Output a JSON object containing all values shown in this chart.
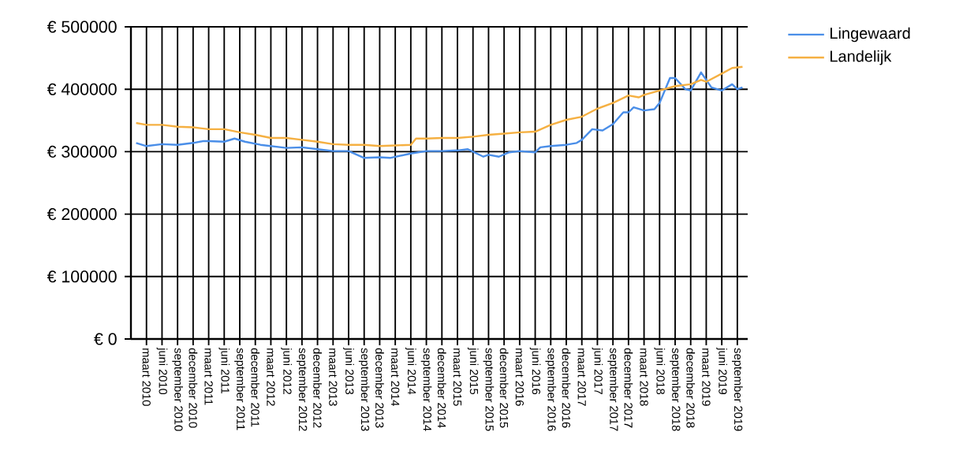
{
  "chart_data": {
    "type": "line",
    "grid": true,
    "legend": "top right",
    "marker": "none",
    "line_style": "solid",
    "xlim": [
      "2009-12",
      "2019-11"
    ],
    "xticks": [
      {
        "value": "2010-03",
        "label": "maart 2010"
      },
      {
        "value": "2010-06",
        "label": "juni 2010"
      },
      {
        "value": "2010-09",
        "label": "september 2010"
      },
      {
        "value": "2010-12",
        "label": "december 2010"
      },
      {
        "value": "2011-03",
        "label": "maart 2011"
      },
      {
        "value": "2011-06",
        "label": "juni 2011"
      },
      {
        "value": "2011-09",
        "label": "september 2011"
      },
      {
        "value": "2011-12",
        "label": "december 2011"
      },
      {
        "value": "2012-03",
        "label": "maart 2012"
      },
      {
        "value": "2012-06",
        "label": "juni 2012"
      },
      {
        "value": "2012-09",
        "label": "september 2012"
      },
      {
        "value": "2012-12",
        "label": "december 2012"
      },
      {
        "value": "2013-03",
        "label": "maart 2013"
      },
      {
        "value": "2013-06",
        "label": "juni 2013"
      },
      {
        "value": "2013-09",
        "label": "september 2013"
      },
      {
        "value": "2013-12",
        "label": "december 2013"
      },
      {
        "value": "2014-03",
        "label": "maart 2014"
      },
      {
        "value": "2014-06",
        "label": "juni 2014"
      },
      {
        "value": "2014-09",
        "label": "september 2014"
      },
      {
        "value": "2014-12",
        "label": "december 2014"
      },
      {
        "value": "2015-03",
        "label": "maart 2015"
      },
      {
        "value": "2015-06",
        "label": "juni 2015"
      },
      {
        "value": "2015-09",
        "label": "september 2015"
      },
      {
        "value": "2015-12",
        "label": "december 2015"
      },
      {
        "value": "2016-03",
        "label": "maart 2016"
      },
      {
        "value": "2016-06",
        "label": "juni 2016"
      },
      {
        "value": "2016-09",
        "label": "september 2016"
      },
      {
        "value": "2016-12",
        "label": "december 2016"
      },
      {
        "value": "2017-03",
        "label": "maart 2017"
      },
      {
        "value": "2017-06",
        "label": "juni 2017"
      },
      {
        "value": "2017-09",
        "label": "september 2017"
      },
      {
        "value": "2017-12",
        "label": "december 2017"
      },
      {
        "value": "2018-03",
        "label": "maart 2018"
      },
      {
        "value": "2018-06",
        "label": "juni 2018"
      },
      {
        "value": "2018-09",
        "label": "september 2018"
      },
      {
        "value": "2018-12",
        "label": "december 2018"
      },
      {
        "value": "2019-03",
        "label": "maart 2019"
      },
      {
        "value": "2019-06",
        "label": "juni 2019"
      },
      {
        "value": "2019-09",
        "label": "september 2019"
      }
    ],
    "ylim": [
      0,
      500000
    ],
    "yticks": [
      {
        "value": 0,
        "label": "€ 0"
      },
      {
        "value": 100000,
        "label": "€ 100000"
      },
      {
        "value": 200000,
        "label": "€ 200000"
      },
      {
        "value": 300000,
        "label": "€ 300000"
      },
      {
        "value": 400000,
        "label": "€ 400000"
      },
      {
        "value": 500000,
        "label": "€ 500000"
      }
    ],
    "series": [
      {
        "name": "Lingewaard",
        "color": "#4a8ee8",
        "x": [
          "2010-01",
          "2010-03",
          "2010-06",
          "2010-09",
          "2010-12",
          "2011-02",
          "2011-03",
          "2011-06",
          "2011-08",
          "2011-10",
          "2012-01",
          "2012-06",
          "2012-09",
          "2012-12",
          "2013-03",
          "2013-06",
          "2013-09",
          "2013-12",
          "2014-02",
          "2014-06",
          "2014-09",
          "2014-12",
          "2015-03",
          "2015-05",
          "2015-08",
          "2015-09",
          "2015-11",
          "2016-01",
          "2016-03",
          "2016-06",
          "2016-07",
          "2016-09",
          "2016-12",
          "2017-02",
          "2017-03",
          "2017-05",
          "2017-07",
          "2017-09",
          "2017-11",
          "2017-12",
          "2018-01",
          "2018-03",
          "2018-05",
          "2018-06",
          "2018-08",
          "2018-09",
          "2018-11",
          "2018-12",
          "2019-02",
          "2019-04",
          "2019-06",
          "2019-08",
          "2019-09",
          "2019-10"
        ],
        "values": [
          314000,
          309000,
          312000,
          311000,
          314000,
          317000,
          317000,
          316000,
          321000,
          316000,
          311000,
          306000,
          307000,
          304000,
          301000,
          301000,
          290000,
          291000,
          290000,
          297000,
          301000,
          301000,
          302000,
          304000,
          292000,
          295000,
          292000,
          299000,
          301000,
          299000,
          307000,
          309000,
          311000,
          314000,
          319000,
          336000,
          334000,
          344000,
          363000,
          363000,
          371000,
          366000,
          368000,
          378000,
          418000,
          418000,
          400000,
          398000,
          427000,
          403000,
          398000,
          408000,
          400000,
          403000
        ]
      },
      {
        "name": "Landelijk",
        "color": "#f5b042",
        "x": [
          "2010-01",
          "2010-03",
          "2010-06",
          "2010-09",
          "2010-12",
          "2011-03",
          "2011-06",
          "2011-09",
          "2011-12",
          "2012-03",
          "2012-06",
          "2012-09",
          "2012-12",
          "2013-03",
          "2013-06",
          "2013-09",
          "2013-12",
          "2014-03",
          "2014-06",
          "2014-07",
          "2014-09",
          "2014-12",
          "2015-03",
          "2015-06",
          "2015-09",
          "2015-12",
          "2016-03",
          "2016-06",
          "2016-09",
          "2016-12",
          "2017-03",
          "2017-06",
          "2017-09",
          "2017-12",
          "2018-02",
          "2018-03",
          "2018-06",
          "2018-09",
          "2018-12",
          "2019-02",
          "2019-03",
          "2019-06",
          "2019-08",
          "2019-10"
        ],
        "values": [
          346000,
          343000,
          343000,
          340000,
          339000,
          336000,
          336000,
          331000,
          327000,
          322000,
          322000,
          319000,
          316000,
          312000,
          311000,
          311000,
          309000,
          310000,
          311000,
          321000,
          321000,
          322000,
          322000,
          324000,
          327000,
          329000,
          331000,
          332000,
          343000,
          351000,
          356000,
          369000,
          378000,
          390000,
          387000,
          391000,
          398000,
          405000,
          408000,
          415000,
          412000,
          425000,
          434000,
          436000
        ]
      }
    ]
  }
}
